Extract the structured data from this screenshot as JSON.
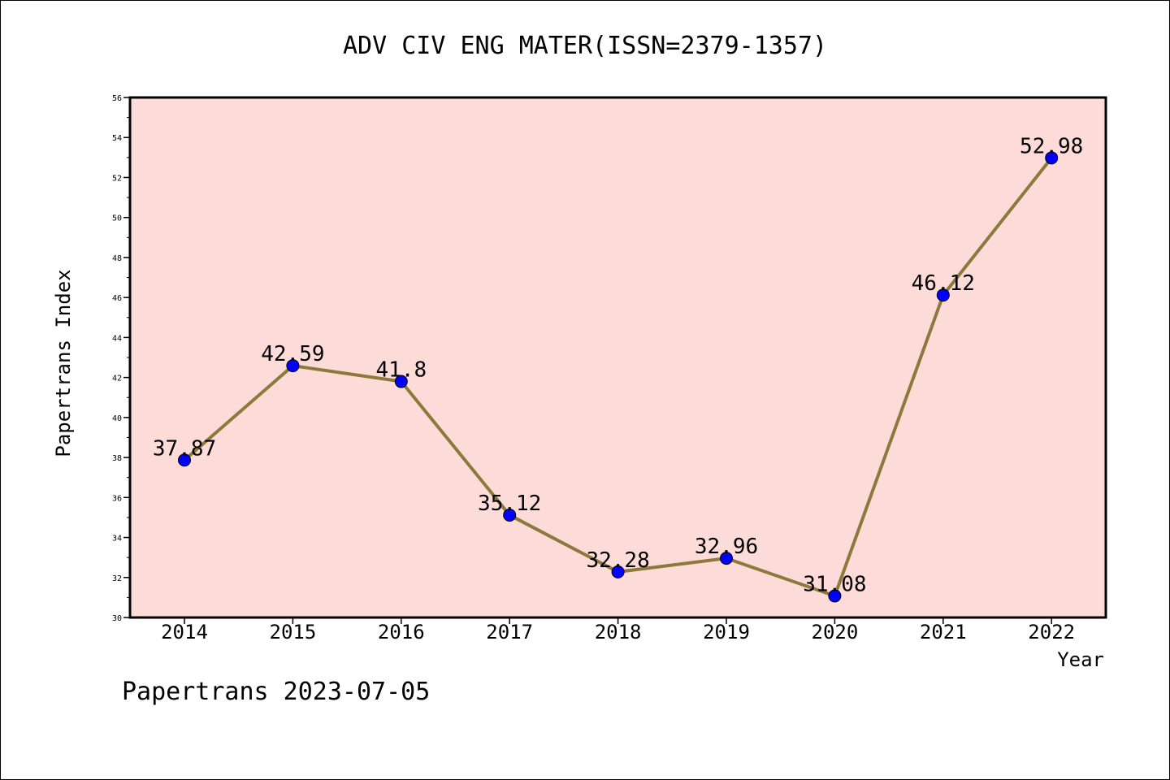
{
  "footer": "Papertrans 2023-07-05",
  "chart_data": {
    "type": "line",
    "title": "ADV CIV ENG MATER(ISSN=2379-1357)",
    "xlabel": "Year",
    "ylabel": "Papertrans Index",
    "categories": [
      "2014",
      "2015",
      "2016",
      "2017",
      "2018",
      "2019",
      "2020",
      "2021",
      "2022"
    ],
    "series": [
      {
        "values": [
          37.87,
          42.59,
          41.8,
          35.12,
          32.28,
          32.96,
          31.08,
          46.12,
          52.98
        ],
        "data_labels": [
          "37.87",
          "42.59",
          "41.8",
          "35.12",
          "32.28",
          "32.96",
          "31.08",
          "46.12",
          "52.98"
        ],
        "line_color": "#8c7a3c",
        "marker_color": "#0000ff"
      }
    ],
    "ylim": [
      30,
      56
    ],
    "y_ticks": [
      30,
      32,
      34,
      36,
      38,
      40,
      42,
      44,
      46,
      48,
      50,
      52,
      54,
      56
    ],
    "plot_background": "#fddbd8",
    "grid": false,
    "legend": "none"
  }
}
